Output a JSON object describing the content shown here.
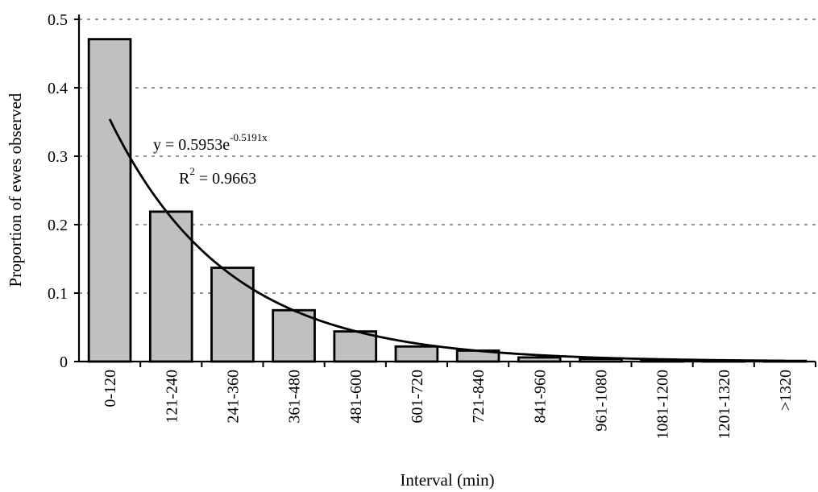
{
  "chart_data": {
    "type": "bar",
    "xlabel": "Interval (min)",
    "ylabel": "Proportion of ewes observed",
    "ylim": [
      0,
      0.5
    ],
    "yticks": [
      "0",
      "0.1",
      "0.2",
      "0.3",
      "0.4",
      "0.5"
    ],
    "grid": true,
    "categories": [
      "0-120",
      "121-240",
      "241-360",
      "361-480",
      "481-600",
      "601-720",
      "721-840",
      "841-960",
      "961-1080",
      "1081-1200",
      "1201-1320",
      ">1320"
    ],
    "values": [
      0.471,
      0.219,
      0.137,
      0.075,
      0.044,
      0.022,
      0.016,
      0.006,
      0.004,
      0.002,
      0.001,
      0.001
    ],
    "trendline": {
      "type": "exponential",
      "a": 0.5953,
      "b": -0.5191,
      "equation_prefix": "y = 0.5953e",
      "equation_exponent": "-0.5191x",
      "r2_prefix": "R",
      "r2_sup": "2",
      "r2_suffix": " = 0.9663"
    }
  }
}
